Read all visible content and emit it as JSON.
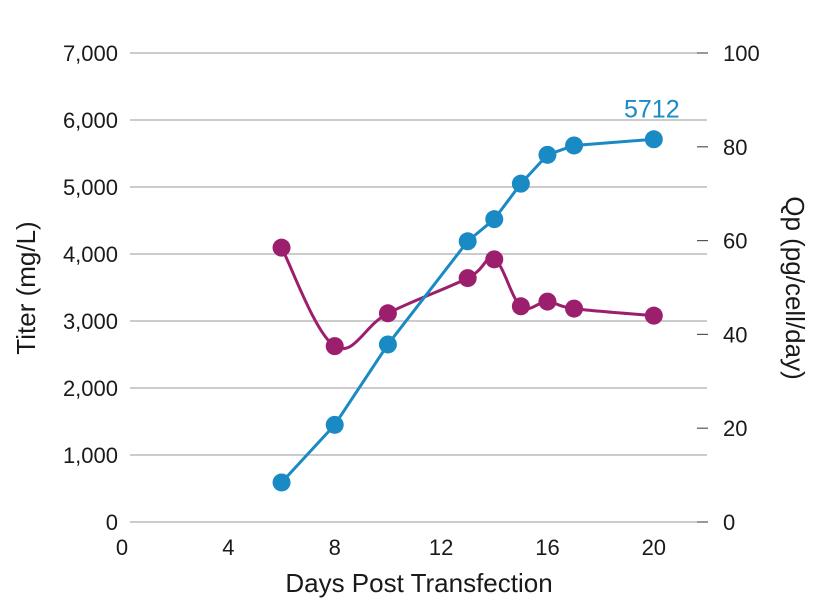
{
  "chart_data": {
    "type": "line",
    "xlabel": "Days Post Transfection",
    "ylabel_left": "Titer (mg/L)",
    "ylabel_right": "Qp (pg/cell/day)",
    "xlim": [
      0,
      22
    ],
    "x_ticks": [
      0,
      4,
      8,
      12,
      16,
      20
    ],
    "x_tick_labels": [
      "0",
      "4",
      "8",
      "12",
      "16",
      "20"
    ],
    "ylim_left": [
      0,
      7000
    ],
    "y_ticks_left": [
      0,
      1000,
      2000,
      3000,
      4000,
      5000,
      6000,
      7000
    ],
    "y_tick_labels_left": [
      "0",
      "1,000",
      "2,000",
      "3,000",
      "4,000",
      "5,000",
      "6,000",
      "7,000"
    ],
    "ylim_right": [
      0,
      100
    ],
    "y_ticks_right": [
      0,
      20,
      40,
      60,
      80,
      100
    ],
    "y_tick_labels_right": [
      "0",
      "20",
      "40",
      "60",
      "80",
      "100"
    ],
    "grid": true,
    "series": [
      {
        "name": "Titer",
        "axis": "left",
        "color": "#1a8ac4",
        "smooth": false,
        "x": [
          6,
          8,
          10,
          13,
          14,
          15,
          16,
          17,
          20
        ],
        "values": [
          590,
          1450,
          2650,
          4190,
          4520,
          5050,
          5480,
          5620,
          5712
        ]
      },
      {
        "name": "Qp",
        "axis": "right",
        "color": "#9c1f6e",
        "smooth": true,
        "x": [
          6,
          8,
          10,
          13,
          14,
          15,
          16,
          17,
          20
        ],
        "values": [
          58.5,
          37.5,
          44.5,
          52,
          56,
          46,
          47,
          45.5,
          44
        ]
      }
    ],
    "annotations": [
      {
        "text": "5712",
        "series": "Titer",
        "x": 20,
        "y": 5712,
        "color": "#1a8ac4"
      }
    ]
  }
}
